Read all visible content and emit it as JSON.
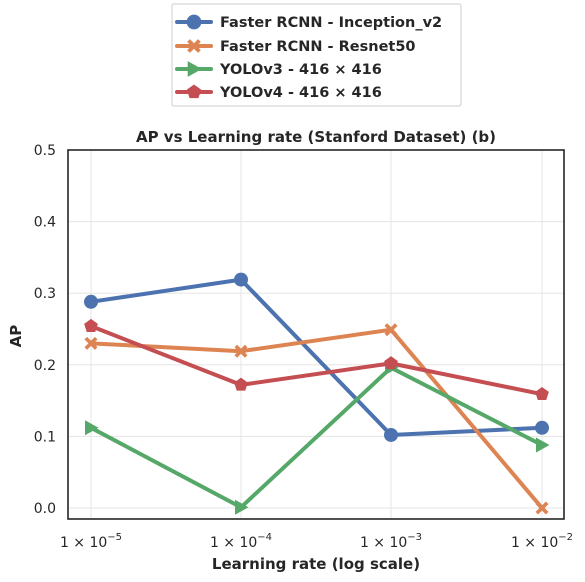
{
  "chart_data": {
    "type": "line",
    "title": "AP vs Learning rate (Stanford Dataset)  (b)",
    "xlabel": "Learning rate (log scale)",
    "ylabel": "AP",
    "x": [
      1e-05,
      0.0001,
      0.001,
      0.01
    ],
    "x_tick_labels": [
      {
        "base": "1 × 10",
        "exp": "−5"
      },
      {
        "base": "1 × 10",
        "exp": "−4"
      },
      {
        "base": "1 × 10",
        "exp": "−3"
      },
      {
        "base": "1 × 10",
        "exp": "−2"
      }
    ],
    "x_scale": "log",
    "ylim": [
      0.0,
      0.5
    ],
    "y_ticks": [
      "0.0",
      "0.1",
      "0.2",
      "0.3",
      "0.4",
      "0.5"
    ],
    "grid": true,
    "legend_position": "top-center, above the plot",
    "series": [
      {
        "name": "Faster RCNN - Inception_v2",
        "values": [
          0.288,
          0.319,
          0.102,
          0.112
        ],
        "color": "#4c72b0",
        "marker": "circle"
      },
      {
        "name": "Faster RCNN - Resnet50",
        "values": [
          0.23,
          0.219,
          0.249,
          0.0
        ],
        "color": "#dd8452",
        "marker": "x-filled"
      },
      {
        "name": "YOLOv3 - 416 × 416",
        "values": [
          0.112,
          0.001,
          0.196,
          0.088
        ],
        "color": "#55a868",
        "marker": "triangle-right"
      },
      {
        "name": "YOLOv4 - 416 × 416",
        "values": [
          0.254,
          0.172,
          0.202,
          0.159
        ],
        "color": "#c44e52",
        "marker": "pentagon"
      }
    ]
  }
}
